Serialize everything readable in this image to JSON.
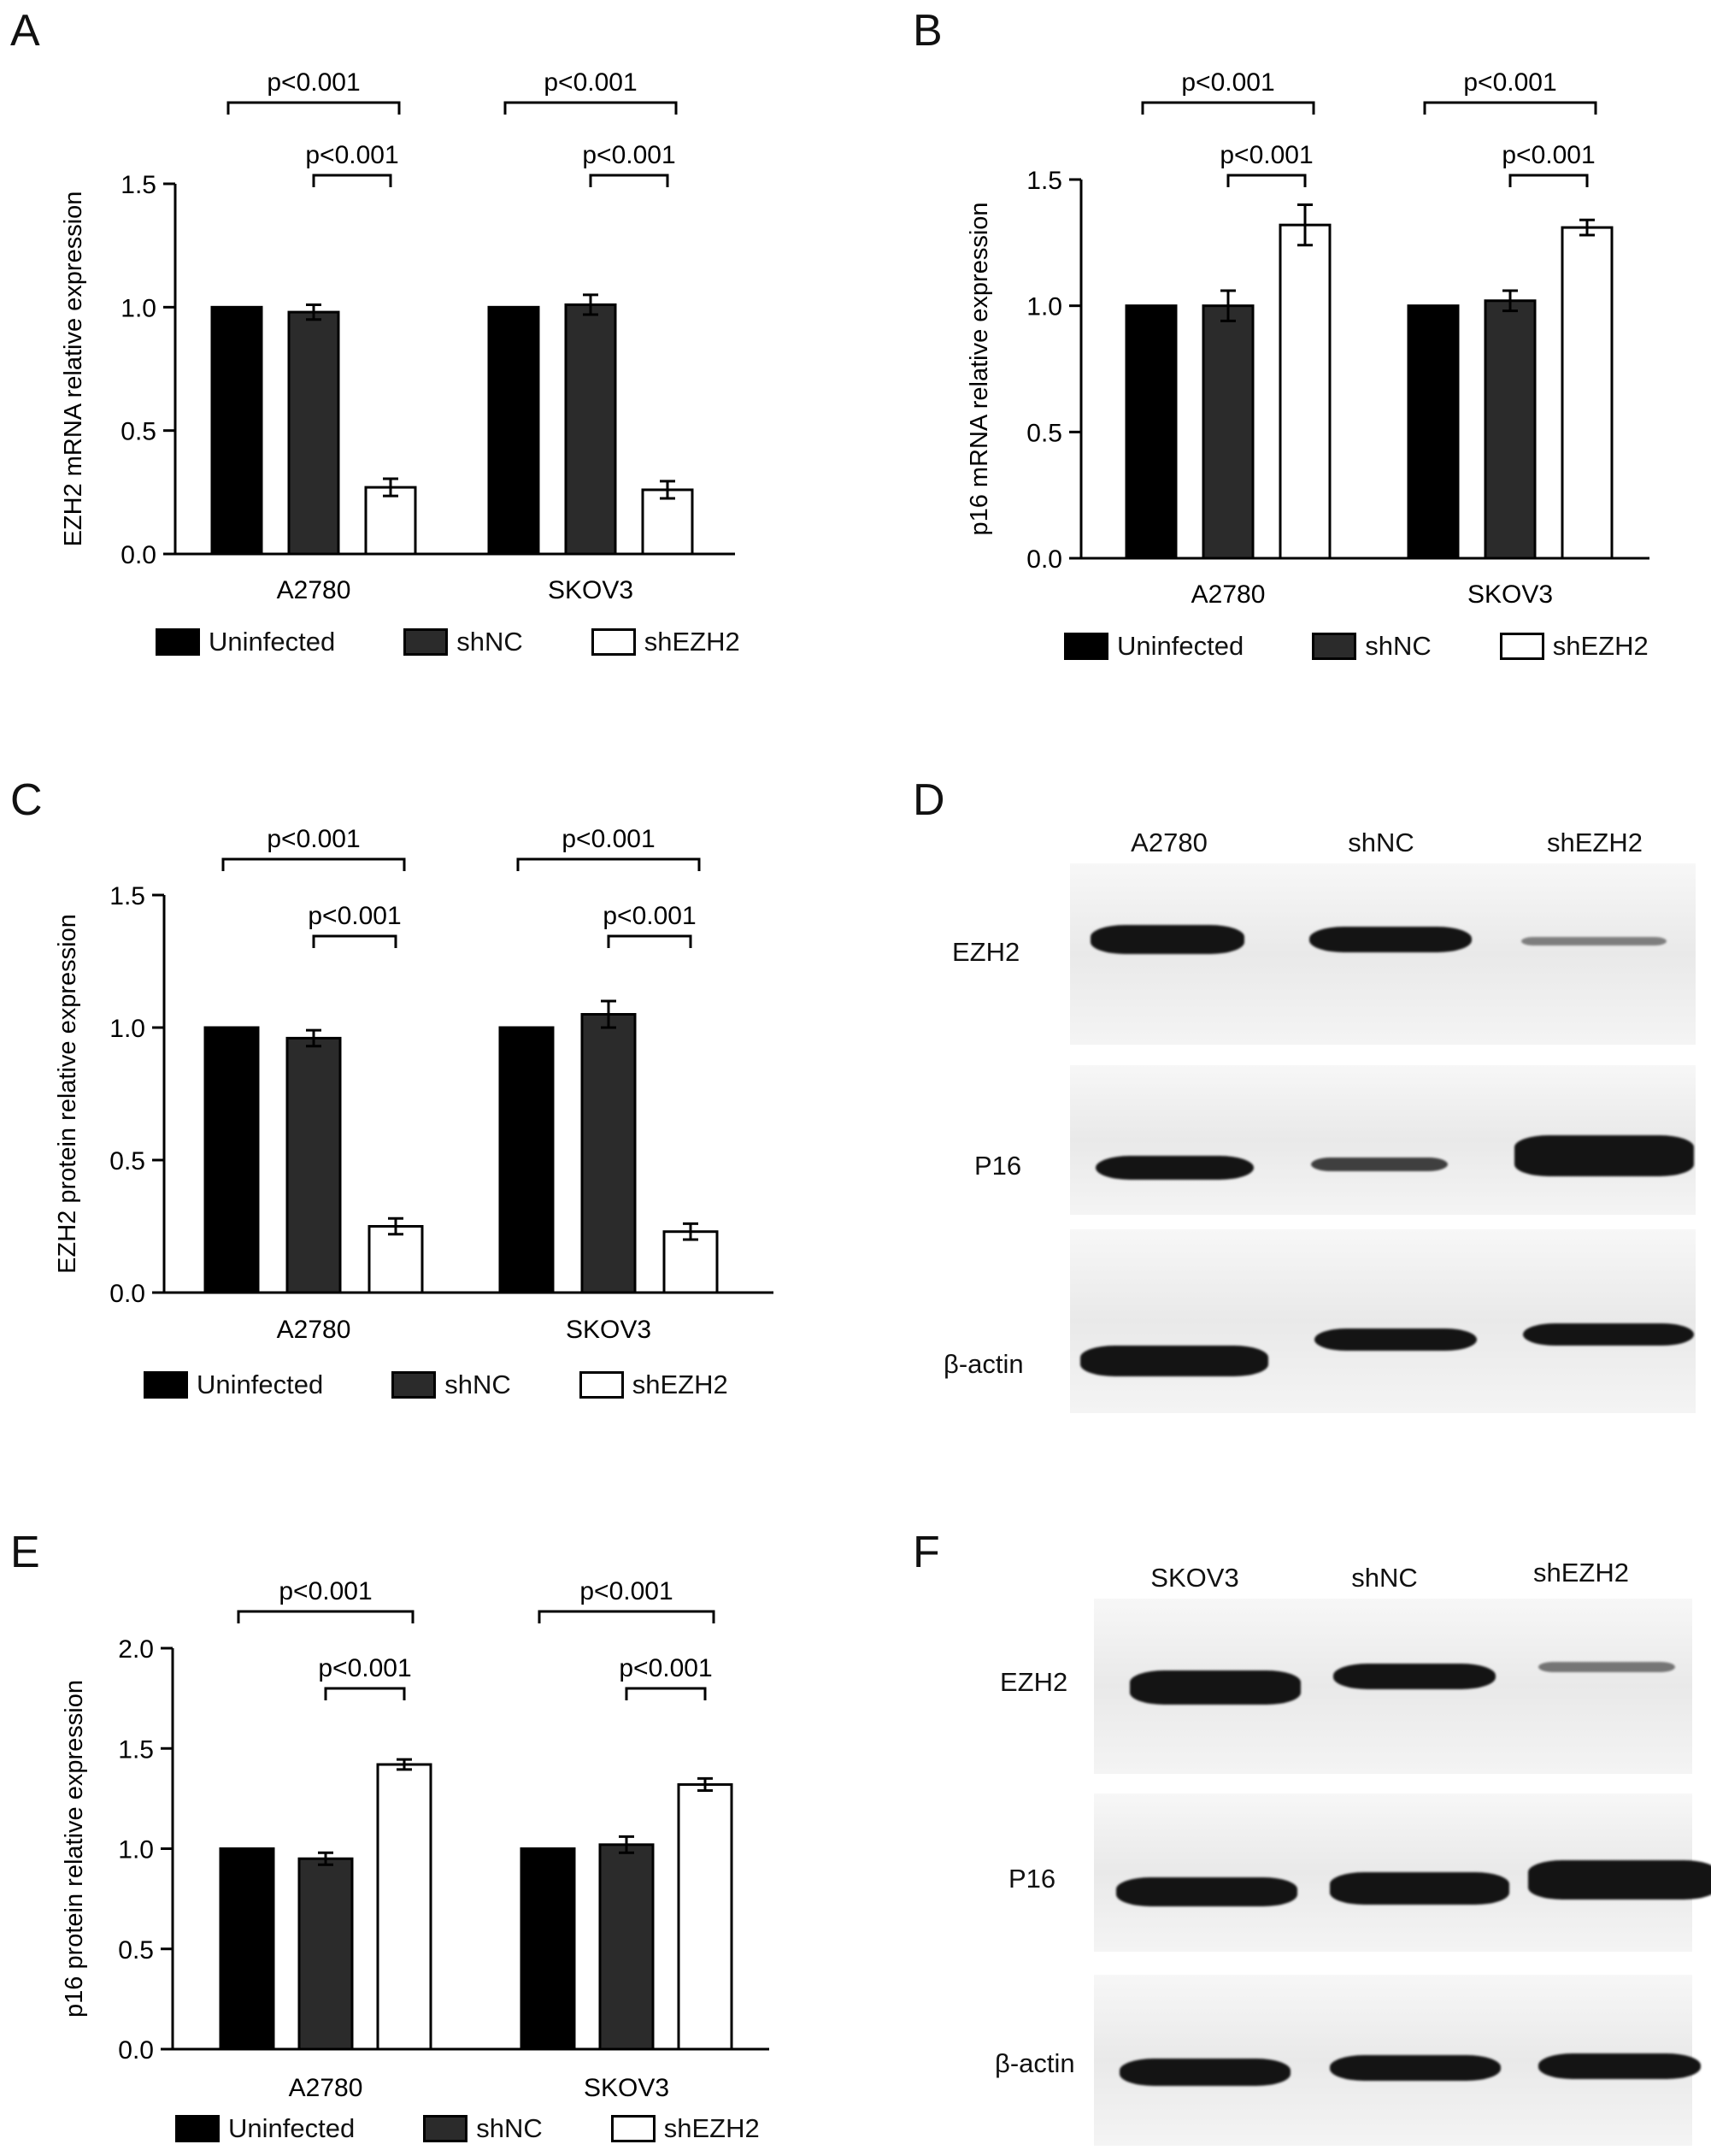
{
  "colors": {
    "uninfected": "#000000",
    "shnc": "#2b2b2b",
    "shezh2": "#ffffff"
  },
  "legend": {
    "uninfected": "Uninfected",
    "shnc": "shNC",
    "shezh2": "shEZH2"
  },
  "chart_data": [
    {
      "id": "A",
      "type": "bar",
      "letter": "A",
      "ylabel": "EZH2 mRNA relative expression",
      "ylim": [
        0,
        1.5
      ],
      "yticks": [
        "0.0",
        "0.5",
        "1.0",
        "1.5"
      ],
      "categories": [
        "A2780",
        "SKOV3"
      ],
      "series": [
        {
          "name": "Uninfected",
          "values": [
            1.0,
            1.0
          ],
          "errors": [
            0,
            0
          ]
        },
        {
          "name": "shNC",
          "values": [
            0.98,
            1.01
          ],
          "errors": [
            0.03,
            0.04
          ]
        },
        {
          "name": "shEZH2",
          "values": [
            0.27,
            0.26
          ],
          "errors": [
            0.035,
            0.035
          ]
        }
      ],
      "annotations": [
        {
          "category": 0,
          "from": 0,
          "to": 2,
          "text": "p<0.001"
        },
        {
          "category": 0,
          "from": 1,
          "to": 2,
          "text": "p<0.001"
        },
        {
          "category": 1,
          "from": 0,
          "to": 2,
          "text": "p<0.001"
        },
        {
          "category": 1,
          "from": 1,
          "to": 2,
          "text": "p<0.001"
        }
      ]
    },
    {
      "id": "B",
      "type": "bar",
      "letter": "B",
      "ylabel": "p16 mRNA relative expression",
      "ylim": [
        0,
        1.5
      ],
      "yticks": [
        "0.0",
        "0.5",
        "1.0",
        "1.5"
      ],
      "categories": [
        "A2780",
        "SKOV3"
      ],
      "series": [
        {
          "name": "Uninfected",
          "values": [
            1.0,
            1.0
          ],
          "errors": [
            0,
            0
          ]
        },
        {
          "name": "shNC",
          "values": [
            1.0,
            1.02
          ],
          "errors": [
            0.06,
            0.04
          ]
        },
        {
          "name": "shEZH2",
          "values": [
            1.32,
            1.31
          ],
          "errors": [
            0.08,
            0.03
          ]
        }
      ],
      "annotations": [
        {
          "category": 0,
          "from": 0,
          "to": 2,
          "text": "p<0.001"
        },
        {
          "category": 0,
          "from": 1,
          "to": 2,
          "text": "p<0.001"
        },
        {
          "category": 1,
          "from": 0,
          "to": 2,
          "text": "p<0.001"
        },
        {
          "category": 1,
          "from": 1,
          "to": 2,
          "text": "p<0.001"
        }
      ]
    },
    {
      "id": "C",
      "type": "bar",
      "letter": "C",
      "ylabel": "EZH2 protein relative expression",
      "ylim": [
        0,
        1.5
      ],
      "yticks": [
        "0.0",
        "0.5",
        "1.0",
        "1.5"
      ],
      "categories": [
        "A2780",
        "SKOV3"
      ],
      "series": [
        {
          "name": "Uninfected",
          "values": [
            1.0,
            1.0
          ],
          "errors": [
            0,
            0
          ]
        },
        {
          "name": "shNC",
          "values": [
            0.96,
            1.05
          ],
          "errors": [
            0.03,
            0.05
          ]
        },
        {
          "name": "shEZH2",
          "values": [
            0.25,
            0.23
          ],
          "errors": [
            0.03,
            0.03
          ]
        }
      ],
      "annotations": [
        {
          "category": 0,
          "from": 0,
          "to": 2,
          "text": "p<0.001"
        },
        {
          "category": 0,
          "from": 1,
          "to": 2,
          "text": "p<0.001"
        },
        {
          "category": 1,
          "from": 0,
          "to": 2,
          "text": "p<0.001"
        },
        {
          "category": 1,
          "from": 1,
          "to": 2,
          "text": "p<0.001"
        }
      ]
    },
    {
      "id": "E",
      "type": "bar",
      "letter": "E",
      "ylabel": "p16 protein relative expression",
      "ylim": [
        0,
        2.0
      ],
      "yticks": [
        "0.0",
        "0.5",
        "1.0",
        "1.5",
        "2.0"
      ],
      "categories": [
        "A2780",
        "SKOV3"
      ],
      "series": [
        {
          "name": "Uninfected",
          "values": [
            1.0,
            1.0
          ],
          "errors": [
            0,
            0
          ]
        },
        {
          "name": "shNC",
          "values": [
            0.95,
            1.02
          ],
          "errors": [
            0.03,
            0.04
          ]
        },
        {
          "name": "shEZH2",
          "values": [
            1.42,
            1.32
          ],
          "errors": [
            0.025,
            0.03
          ]
        }
      ],
      "annotations": [
        {
          "category": 0,
          "from": 0,
          "to": 2,
          "text": "p<0.001"
        },
        {
          "category": 0,
          "from": 1,
          "to": 2,
          "text": "p<0.001"
        },
        {
          "category": 1,
          "from": 0,
          "to": 2,
          "text": "p<0.001"
        },
        {
          "category": 1,
          "from": 1,
          "to": 2,
          "text": "p<0.001"
        }
      ]
    }
  ],
  "blots": {
    "D": {
      "letter": "D",
      "lanes": [
        "A2780",
        "shNC",
        "shEZH2"
      ],
      "rows": [
        "EZH2",
        "P16",
        "β-actin"
      ],
      "intensity": [
        [
          1.0,
          0.85,
          0.15
        ],
        [
          0.7,
          0.4,
          1.0
        ],
        [
          0.9,
          0.75,
          0.8
        ]
      ]
    },
    "F": {
      "letter": "F",
      "lanes": [
        "SKOV3",
        "shNC",
        "shEZH2"
      ],
      "rows": [
        "EZH2",
        "P16",
        "β-actin"
      ],
      "intensity": [
        [
          0.95,
          0.8,
          0.2
        ],
        [
          0.8,
          0.85,
          1.0
        ],
        [
          0.9,
          0.85,
          0.85
        ]
      ]
    }
  }
}
